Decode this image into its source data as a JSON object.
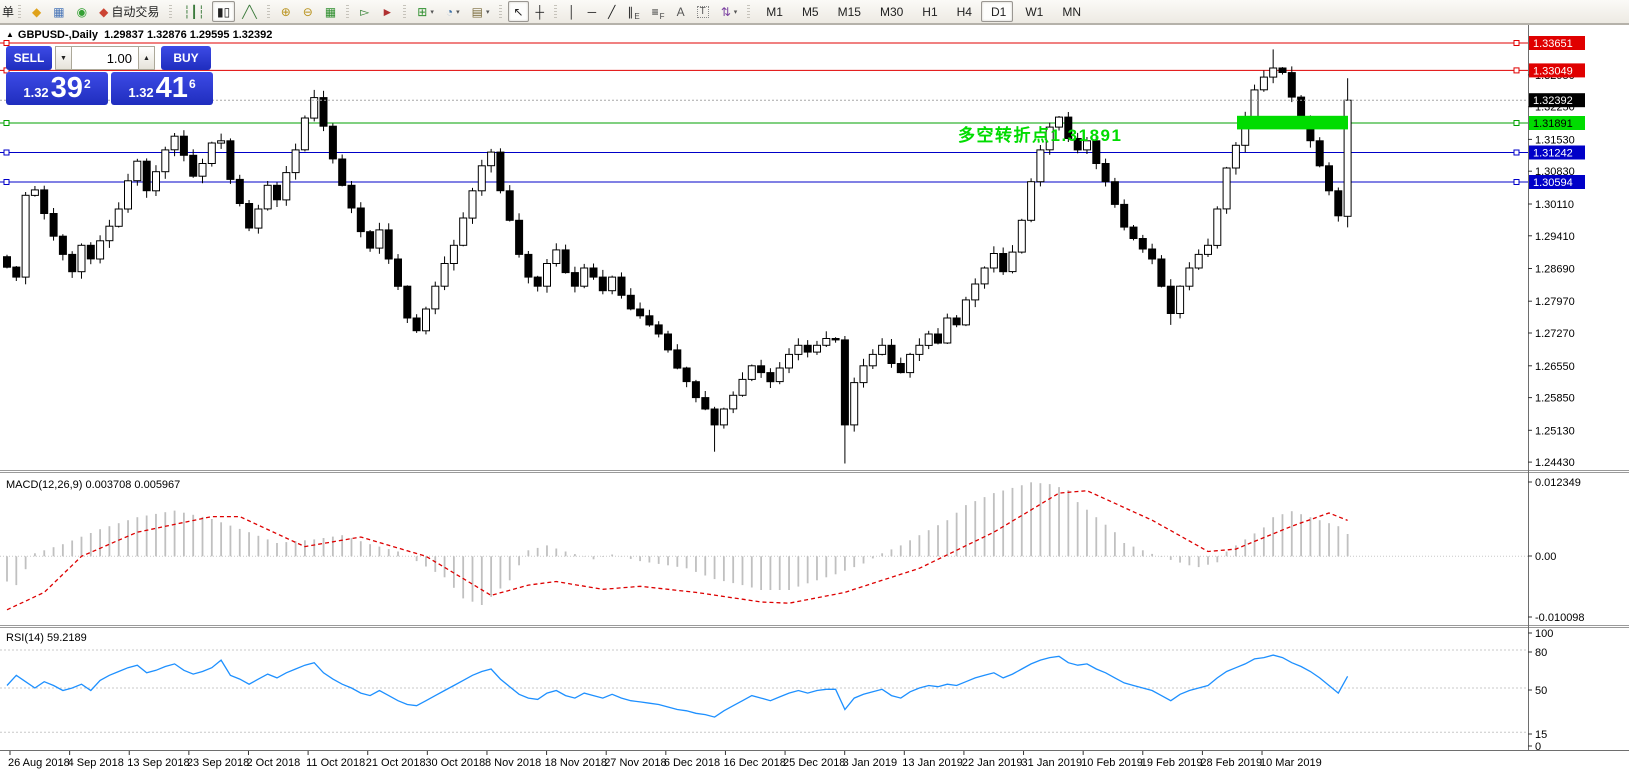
{
  "window": {
    "collapse_glyph": "▲",
    "title_symbol": "GBPUSD-,Daily",
    "title_ohlc": "1.29837 1.32876 1.29595 1.32392"
  },
  "trade_panel": {
    "sell_label": "SELL",
    "buy_label": "BUY",
    "volume": "1.00",
    "down_glyph": "▼",
    "up_glyph": "▲",
    "sell_price_small": "1.32",
    "sell_price_big": "39",
    "sell_price_sup": "2",
    "buy_price_small": "1.32",
    "buy_price_big": "41",
    "buy_price_sup": "6"
  },
  "toolbar": {
    "partial_label": "单",
    "groups": [
      {
        "name": "system",
        "items": [
          {
            "n": "new-order-icon",
            "g": "◆",
            "c": "#dfa21b"
          },
          {
            "n": "new-chart-icon",
            "g": "▦",
            "c": "#4a76b8"
          },
          {
            "n": "market-watch-icon",
            "g": "◉",
            "c": "#35a035"
          },
          {
            "n": "autotrading-icon",
            "g": "◆",
            "c": "#cc4433",
            "label": "自动交易"
          }
        ]
      },
      {
        "name": "chart-type",
        "items": [
          {
            "n": "bars-chart-icon",
            "g": "┆┃┆",
            "c": "#3c7a3c"
          },
          {
            "n": "candlestick-chart-icon",
            "g": "▮▯",
            "c": "#222222",
            "active": true
          },
          {
            "n": "line-chart-icon",
            "g": "╱╲",
            "c": "#3c7a3c"
          }
        ]
      },
      {
        "name": "zoom",
        "items": [
          {
            "n": "zoom-in-icon",
            "g": "⊕",
            "c": "#b8921d"
          },
          {
            "n": "zoom-out-icon",
            "g": "⊖",
            "c": "#b8921d"
          },
          {
            "n": "tile-windows-icon",
            "g": "▦",
            "c": "#2f8f2f"
          }
        ]
      },
      {
        "name": "scroll",
        "items": [
          {
            "n": "auto-scroll-icon",
            "g": "▻",
            "c": "#2f7f2f"
          },
          {
            "n": "chart-shift-icon",
            "g": "►",
            "c": "#b03030"
          }
        ]
      },
      {
        "name": "objects-a",
        "items": [
          {
            "n": "indicators-icon",
            "g": "⊞",
            "c": "#2f8f2f",
            "caret": true
          },
          {
            "n": "periods-icon",
            "g": "◔",
            "c": "#3a6ea5",
            "caret": true
          },
          {
            "n": "templates-icon",
            "g": "▤",
            "c": "#7a6a3a",
            "caret": true
          }
        ]
      },
      {
        "name": "cursor",
        "items": [
          {
            "n": "cursor-icon",
            "g": "↖",
            "c": "#222222",
            "active": true
          },
          {
            "n": "crosshair-icon",
            "g": "┼",
            "c": "#222222"
          }
        ]
      },
      {
        "name": "drawing",
        "items": [
          {
            "n": "vline-icon",
            "g": "│",
            "c": "#222222"
          },
          {
            "n": "hline-icon",
            "g": "─",
            "c": "#222222"
          },
          {
            "n": "trendline-icon",
            "g": "╱",
            "c": "#222222"
          },
          {
            "n": "channel-icon",
            "g": "∥",
            "c": "#222222",
            "sub": "E"
          },
          {
            "n": "fibonacci-icon",
            "g": "≡",
            "c": "#222222",
            "sub": "F"
          },
          {
            "n": "text-icon",
            "g": "A",
            "c": "#555555"
          },
          {
            "n": "label-icon",
            "g": "T",
            "c": "#555555",
            "boxed": true
          },
          {
            "n": "arrows-icon",
            "g": "⇅",
            "c": "#7a40a0",
            "caret": true
          }
        ]
      },
      {
        "name": "timeframes",
        "tf": true,
        "items": [
          {
            "n": "tf-m1",
            "label": "M1"
          },
          {
            "n": "tf-m5",
            "label": "M5"
          },
          {
            "n": "tf-m15",
            "label": "M15"
          },
          {
            "n": "tf-m30",
            "label": "M30"
          },
          {
            "n": "tf-h1",
            "label": "H1"
          },
          {
            "n": "tf-h4",
            "label": "H4"
          },
          {
            "n": "tf-d1",
            "label": "D1",
            "active": true
          },
          {
            "n": "tf-w1",
            "label": "W1"
          },
          {
            "n": "tf-mn",
            "label": "MN"
          }
        ]
      }
    ]
  },
  "chart_data": {
    "type": "candlestick",
    "symbol": "GBPUSD-",
    "period": "Daily",
    "last_ohlc": {
      "open": 1.29837,
      "high": 1.32876,
      "low": 1.29595,
      "close": 1.32392
    },
    "price_pane": {
      "first_open": 1.2895,
      "closes": [
        1.2872,
        1.285,
        1.303,
        1.3042,
        1.299,
        1.294,
        1.29,
        1.2862,
        1.292,
        1.289,
        1.293,
        1.2962,
        1.3,
        1.3062,
        1.3105,
        1.304,
        1.3082,
        1.313,
        1.316,
        1.3118,
        1.3072,
        1.31,
        1.3145,
        1.315,
        1.3065,
        1.3012,
        1.2958,
        1.3,
        1.3052,
        1.302,
        1.308,
        1.313,
        1.32,
        1.3245,
        1.3182,
        1.311,
        1.3052,
        1.3002,
        1.295,
        1.2914,
        1.2954,
        1.289,
        1.283,
        1.276,
        1.2732,
        1.278,
        1.283,
        1.288,
        1.292,
        1.298,
        1.304,
        1.3095,
        1.3125,
        1.304,
        1.2975,
        1.29,
        1.285,
        1.283,
        1.288,
        1.291,
        1.286,
        1.283,
        1.287,
        1.285,
        1.282,
        1.285,
        1.281,
        1.278,
        1.2765,
        1.2745,
        1.2725,
        1.269,
        1.265,
        1.262,
        1.2585,
        1.256,
        1.2525,
        1.256,
        1.259,
        1.2625,
        1.2655,
        1.264,
        1.262,
        1.265,
        1.268,
        1.27,
        1.2685,
        1.27,
        1.2715,
        1.2712,
        1.2525,
        1.2618,
        1.2655,
        1.268,
        1.27,
        1.266,
        1.264,
        1.268,
        1.27,
        1.2725,
        1.2705,
        1.276,
        1.2745,
        1.28,
        1.2835,
        1.287,
        1.2902,
        1.2862,
        1.2905,
        1.2975,
        1.306,
        1.313,
        1.318,
        1.3202,
        1.3155,
        1.313,
        1.315,
        1.31,
        1.306,
        1.301,
        1.296,
        1.2935,
        1.2912,
        1.289,
        1.283,
        1.277,
        1.283,
        1.287,
        1.29,
        1.292,
        1.3,
        1.309,
        1.314,
        1.32,
        1.3262,
        1.329,
        1.331,
        1.33,
        1.3246,
        1.32,
        1.315,
        1.3095,
        1.304,
        1.2985,
        1.32392
      ],
      "overrides": {
        "33": {
          "high": 1.3262
        },
        "76": {
          "low": 1.2466
        },
        "90": {
          "low": 1.244
        },
        "125": {
          "low": 1.2745
        },
        "136": {
          "high": 1.3351
        },
        "144": {
          "open": 1.29837,
          "high": 1.32876,
          "low": 1.29595,
          "close": 1.32392
        }
      },
      "hlines": [
        {
          "price": 1.33651,
          "color": "#e00000"
        },
        {
          "price": 1.33049,
          "color": "#e00000"
        },
        {
          "price": 1.31891,
          "color": "#00a000"
        },
        {
          "price": 1.31242,
          "color": "#0000c8"
        },
        {
          "price": 1.30594,
          "color": "#0000c8"
        }
      ],
      "current_price": 1.32392,
      "zone_rect": {
        "price_top": 1.3205,
        "price_bottom": 1.3175,
        "color": "#00dc00"
      },
      "annotation": {
        "text": "多空转折点1.31891",
        "color": "#00dc00"
      },
      "axis_ticks": [
        "1.32950",
        "1.32250",
        "1.31530",
        "1.30830",
        "1.30110",
        "1.29410",
        "1.28690",
        "1.27970",
        "1.27270",
        "1.26550",
        "1.25850",
        "1.25130",
        "1.24430"
      ],
      "axis_badges": [
        {
          "value": "1.33651",
          "price": 1.33651,
          "bg": "#e00000",
          "fg": "#ffffff"
        },
        {
          "value": "1.33049",
          "price": 1.33049,
          "bg": "#e00000",
          "fg": "#ffffff"
        },
        {
          "value": "1.32392",
          "price": 1.32392,
          "bg": "#000000",
          "fg": "#ffffff"
        },
        {
          "value": "1.31891",
          "price": 1.31891,
          "bg": "#00dc00",
          "fg": "#000000"
        },
        {
          "value": "1.31242",
          "price": 1.31242,
          "bg": "#0000c8",
          "fg": "#ffffff"
        },
        {
          "value": "1.30594",
          "price": 1.30594,
          "bg": "#0000c8",
          "fg": "#ffffff"
        }
      ]
    },
    "macd_pane": {
      "label": "MACD(12,26,9) 0.003708 0.005967",
      "hist_color": "#c0c0c0",
      "signal_color": "#dd0000",
      "hist_anchors": [
        [
          0,
          -0.0042
        ],
        [
          1,
          -0.0048
        ],
        [
          3,
          0.0005
        ],
        [
          6,
          0.002
        ],
        [
          10,
          0.0045
        ],
        [
          14,
          0.0065
        ],
        [
          18,
          0.0076
        ],
        [
          22,
          0.0062
        ],
        [
          26,
          0.004
        ],
        [
          29,
          0.0022
        ],
        [
          33,
          0.0028
        ],
        [
          36,
          0.0035
        ],
        [
          39,
          0.002
        ],
        [
          42,
          0.0008
        ],
        [
          44,
          -0.0008
        ],
        [
          47,
          -0.0035
        ],
        [
          49,
          -0.007
        ],
        [
          51,
          -0.0081
        ],
        [
          54,
          -0.004
        ],
        [
          56,
          0.001
        ],
        [
          58,
          0.0018
        ],
        [
          60,
          0.0008
        ],
        [
          63,
          -0.0005
        ],
        [
          65,
          0.0003
        ],
        [
          68,
          -0.0008
        ],
        [
          71,
          -0.0015
        ],
        [
          73,
          -0.002
        ],
        [
          76,
          -0.0038
        ],
        [
          79,
          -0.0048
        ],
        [
          81,
          -0.0056
        ],
        [
          84,
          -0.0056
        ],
        [
          86,
          -0.0045
        ],
        [
          89,
          -0.003
        ],
        [
          92,
          -0.0012
        ],
        [
          94,
          0.0005
        ],
        [
          96,
          0.0018
        ],
        [
          98,
          0.0035
        ],
        [
          101,
          0.006
        ],
        [
          103,
          0.0085
        ],
        [
          106,
          0.0105
        ],
        [
          109,
          0.0118
        ],
        [
          110,
          0.0123
        ],
        [
          112,
          0.012
        ],
        [
          114,
          0.011
        ],
        [
          115,
          0.009
        ],
        [
          117,
          0.0065
        ],
        [
          119,
          0.004
        ],
        [
          120,
          0.0022
        ],
        [
          122,
          0.001
        ],
        [
          123,
          0.0004
        ],
        [
          125,
          -0.0006
        ],
        [
          127,
          -0.0015
        ],
        [
          128,
          -0.0018
        ],
        [
          130,
          -0.001
        ],
        [
          131,
          0.0008
        ],
        [
          133,
          0.0028
        ],
        [
          135,
          0.0048
        ],
        [
          136,
          0.0065
        ],
        [
          138,
          0.0075
        ],
        [
          139,
          0.007
        ],
        [
          141,
          0.006
        ],
        [
          143,
          0.005
        ],
        [
          144,
          0.0037
        ]
      ],
      "signal_anchors": [
        [
          0,
          -0.0089
        ],
        [
          4,
          -0.006
        ],
        [
          8,
          0
        ],
        [
          14,
          0.004
        ],
        [
          22,
          0.0066
        ],
        [
          25,
          0.0066
        ],
        [
          32,
          0.0016
        ],
        [
          38,
          0.0032
        ],
        [
          45,
          0
        ],
        [
          52,
          -0.0065
        ],
        [
          56,
          -0.0048
        ],
        [
          59,
          -0.0042
        ],
        [
          64,
          -0.0055
        ],
        [
          68,
          -0.005
        ],
        [
          74,
          -0.006
        ],
        [
          81,
          -0.0076
        ],
        [
          84,
          -0.0078
        ],
        [
          90,
          -0.006
        ],
        [
          98,
          -0.002
        ],
        [
          106,
          0.004
        ],
        [
          113,
          0.0105
        ],
        [
          116,
          0.0109
        ],
        [
          123,
          0.006
        ],
        [
          129,
          0.0008
        ],
        [
          132,
          0.0012
        ],
        [
          138,
          0.005
        ],
        [
          142,
          0.0072
        ],
        [
          144,
          0.005967
        ]
      ],
      "axis_labels": [
        [
          "0.012349",
          482
        ],
        [
          "0.00",
          556
        ],
        [
          "-0.010098",
          617
        ]
      ]
    },
    "rsi_pane": {
      "label": "RSI(14) 59.2189",
      "line_color": "#1e90ff",
      "values": [
        52,
        60,
        55,
        50,
        55,
        52,
        48,
        50,
        53,
        48,
        56,
        60,
        63,
        66,
        68,
        62,
        64,
        67,
        69,
        64,
        61,
        63,
        66,
        72,
        60,
        57,
        53,
        57,
        61,
        58,
        62,
        65,
        68,
        70,
        62,
        57,
        53,
        50,
        46,
        44,
        48,
        44,
        40,
        37,
        36,
        40,
        44,
        48,
        52,
        56,
        60,
        63,
        65,
        57,
        51,
        45,
        42,
        41,
        46,
        48,
        44,
        42,
        46,
        44,
        42,
        45,
        42,
        40,
        39,
        38,
        37,
        35,
        33,
        32,
        30,
        29,
        27,
        32,
        36,
        40,
        44,
        42,
        40,
        43,
        46,
        48,
        46,
        48,
        49,
        49,
        33,
        42,
        45,
        47,
        49,
        44,
        42,
        47,
        50,
        52,
        51,
        53,
        52,
        55,
        58,
        60,
        62,
        58,
        61,
        65,
        69,
        72,
        74,
        75,
        70,
        68,
        69,
        65,
        62,
        58,
        54,
        52,
        50,
        48,
        44,
        40,
        45,
        48,
        50,
        52,
        58,
        63,
        66,
        69,
        73,
        74,
        76,
        74,
        70,
        67,
        63,
        58,
        52,
        46,
        59.2
      ],
      "levels": [
        80,
        50,
        15
      ],
      "axis_labels": [
        [
          "100",
          633
        ],
        [
          "80",
          652
        ],
        [
          "50",
          690
        ],
        [
          "15",
          734
        ],
        [
          "0",
          746
        ]
      ]
    },
    "x_axis": {
      "date_labels": [
        "26 Aug 2018",
        "4 Sep 2018",
        "13 Sep 2018",
        "23 Sep 2018",
        "2 Oct 2018",
        "11 Oct 2018",
        "21 Oct 2018",
        "30 Oct 2018",
        "8 Nov 2018",
        "18 Nov 2018",
        "27 Nov 2018",
        "6 Dec 2018",
        "16 Dec 2018",
        "25 Dec 2018",
        "3 Jan 2019",
        "13 Jan 2019",
        "22 Jan 2019",
        "31 Jan 2019",
        "10 Feb 2019",
        "19 Feb 2019",
        "28 Feb 2019",
        "10 Mar 2019"
      ]
    }
  }
}
